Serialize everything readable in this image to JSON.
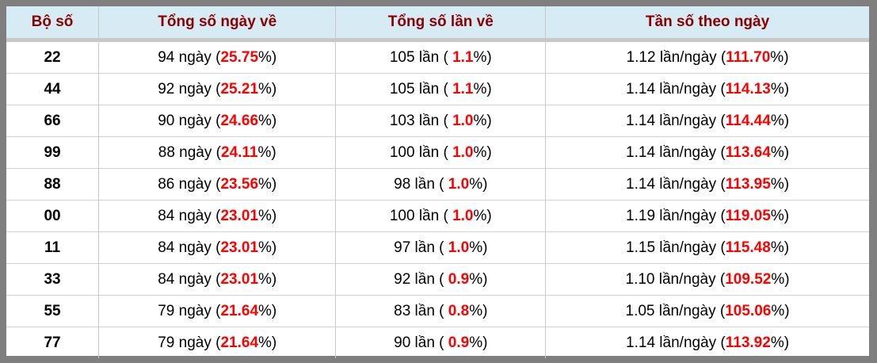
{
  "colors": {
    "header_bg": "#d7ebf5",
    "header_text": "#8b0000",
    "highlight_red": "#ff0000",
    "body_text": "#000000",
    "frame_border": "#7f7f7f",
    "grid_line": "#c9c9c9"
  },
  "table": {
    "headers": [
      "Bộ số",
      "Tổng số ngày về",
      "Tổng số lần về",
      "Tần số theo ngày"
    ],
    "rows": [
      {
        "pair": "22",
        "days": [
          "94 ngày (",
          "25.75",
          "%)"
        ],
        "times": [
          "105 lần ( ",
          "1.1",
          "%)"
        ],
        "freq": [
          "1.12 lần/ngày (",
          "111.70",
          "%)"
        ]
      },
      {
        "pair": "44",
        "days": [
          "92 ngày (",
          "25.21",
          "%)"
        ],
        "times": [
          "105 lần ( ",
          "1.1",
          "%)"
        ],
        "freq": [
          "1.14 lần/ngày (",
          "114.13",
          "%)"
        ]
      },
      {
        "pair": "66",
        "days": [
          "90 ngày (",
          "24.66",
          "%)"
        ],
        "times": [
          "103 lần ( ",
          "1.0",
          "%)"
        ],
        "freq": [
          "1.14 lần/ngày (",
          "114.44",
          "%)"
        ]
      },
      {
        "pair": "99",
        "days": [
          "88 ngày (",
          "24.11",
          "%)"
        ],
        "times": [
          "100 lần ( ",
          "1.0",
          "%)"
        ],
        "freq": [
          "1.14 lần/ngày (",
          "113.64",
          "%)"
        ]
      },
      {
        "pair": "88",
        "days": [
          "86 ngày (",
          "23.56",
          "%)"
        ],
        "times": [
          "98 lần ( ",
          "1.0",
          "%)"
        ],
        "freq": [
          "1.14 lần/ngày (",
          "113.95",
          "%)"
        ]
      },
      {
        "pair": "00",
        "days": [
          "84 ngày (",
          "23.01",
          "%)"
        ],
        "times": [
          "100 lần ( ",
          "1.0",
          "%)"
        ],
        "freq": [
          "1.19 lần/ngày (",
          "119.05",
          "%)"
        ]
      },
      {
        "pair": "11",
        "days": [
          "84 ngày (",
          "23.01",
          "%)"
        ],
        "times": [
          "97 lần ( ",
          "1.0",
          "%)"
        ],
        "freq": [
          "1.15 lần/ngày (",
          "115.48",
          "%)"
        ]
      },
      {
        "pair": "33",
        "days": [
          "84 ngày (",
          "23.01",
          "%)"
        ],
        "times": [
          "92 lần ( ",
          "0.9",
          "%)"
        ],
        "freq": [
          "1.10 lần/ngày (",
          "109.52",
          "%)"
        ]
      },
      {
        "pair": "55",
        "days": [
          "79 ngày (",
          "21.64",
          "%)"
        ],
        "times": [
          "83 lần ( ",
          "0.8",
          "%)"
        ],
        "freq": [
          "1.05 lần/ngày (",
          "105.06",
          "%)"
        ]
      },
      {
        "pair": "77",
        "days": [
          "79 ngày (",
          "21.64",
          "%)"
        ],
        "times": [
          "90 lần ( ",
          "0.9",
          "%)"
        ],
        "freq": [
          "1.14 lần/ngày (",
          "113.92",
          "%)"
        ]
      }
    ]
  },
  "chart_data": {
    "type": "table",
    "columns": [
      "Bộ số",
      "Tổng số ngày về",
      "Tổng số lần về",
      "Tần số theo ngày"
    ],
    "rows": [
      {
        "pair": "22",
        "days": 94,
        "days_pct": 25.75,
        "times": 105,
        "times_pct": 1.1,
        "freq_per_day": 1.12,
        "freq_pct": 111.7
      },
      {
        "pair": "44",
        "days": 92,
        "days_pct": 25.21,
        "times": 105,
        "times_pct": 1.1,
        "freq_per_day": 1.14,
        "freq_pct": 114.13
      },
      {
        "pair": "66",
        "days": 90,
        "days_pct": 24.66,
        "times": 103,
        "times_pct": 1.0,
        "freq_per_day": 1.14,
        "freq_pct": 114.44
      },
      {
        "pair": "99",
        "days": 88,
        "days_pct": 24.11,
        "times": 100,
        "times_pct": 1.0,
        "freq_per_day": 1.14,
        "freq_pct": 113.64
      },
      {
        "pair": "88",
        "days": 86,
        "days_pct": 23.56,
        "times": 98,
        "times_pct": 1.0,
        "freq_per_day": 1.14,
        "freq_pct": 113.95
      },
      {
        "pair": "00",
        "days": 84,
        "days_pct": 23.01,
        "times": 100,
        "times_pct": 1.0,
        "freq_per_day": 1.19,
        "freq_pct": 119.05
      },
      {
        "pair": "11",
        "days": 84,
        "days_pct": 23.01,
        "times": 97,
        "times_pct": 1.0,
        "freq_per_day": 1.15,
        "freq_pct": 115.48
      },
      {
        "pair": "33",
        "days": 84,
        "days_pct": 23.01,
        "times": 92,
        "times_pct": 0.9,
        "freq_per_day": 1.1,
        "freq_pct": 109.52
      },
      {
        "pair": "55",
        "days": 79,
        "days_pct": 21.64,
        "times": 83,
        "times_pct": 0.8,
        "freq_per_day": 1.05,
        "freq_pct": 105.06
      },
      {
        "pair": "77",
        "days": 79,
        "days_pct": 21.64,
        "times": 90,
        "times_pct": 0.9,
        "freq_per_day": 1.14,
        "freq_pct": 113.92
      }
    ]
  }
}
